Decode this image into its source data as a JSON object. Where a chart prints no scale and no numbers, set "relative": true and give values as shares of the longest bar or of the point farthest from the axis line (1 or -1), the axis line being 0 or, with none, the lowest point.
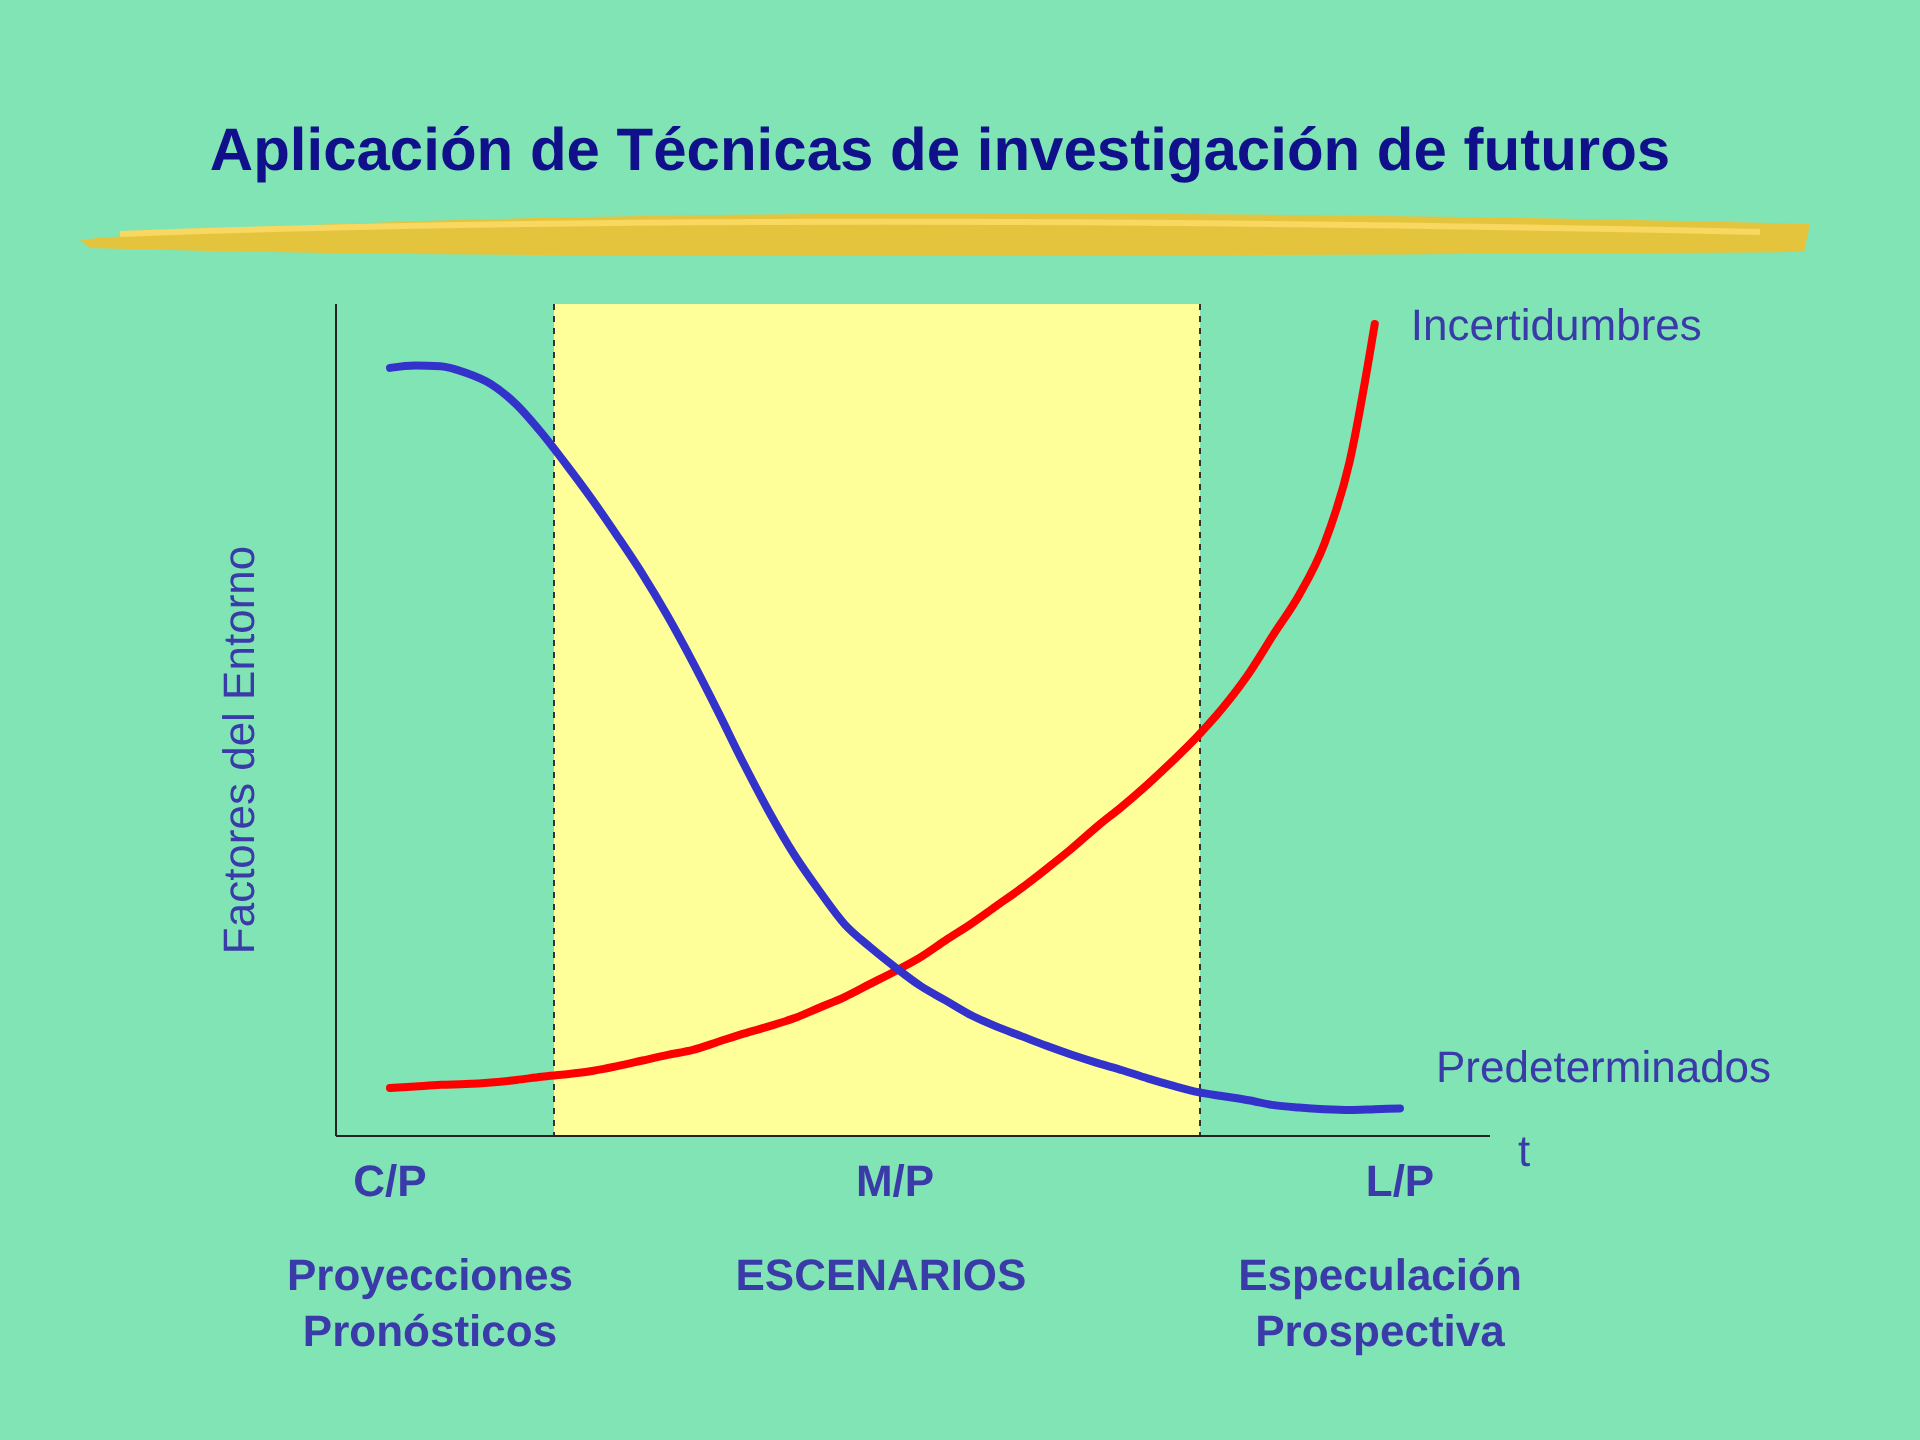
{
  "chart_data": {
    "type": "line",
    "relative": true,
    "title": "Aplicación de Técnicas de investigación de futuros",
    "xlabel": "t",
    "ylabel": "Factores del Entorno",
    "categories": [
      "C/P",
      null,
      null,
      null,
      null,
      null,
      null,
      null,
      null,
      null,
      null,
      null,
      null,
      null,
      null,
      null,
      null,
      null,
      null,
      null,
      "M/P",
      null,
      null,
      null,
      null,
      null,
      null,
      null,
      null,
      null,
      null,
      null,
      null,
      null,
      null,
      null,
      null,
      null,
      null,
      null,
      "L/P"
    ],
    "annotations": [
      "Proyecciones\nPronósticos",
      "ESCENARIOS",
      "Especulación\nProspectiva"
    ],
    "series": [
      {
        "name": "Incertidumbres",
        "color": "#ff0000",
        "values": [
          0.059,
          0.061,
          0.063,
          0.064,
          0.066,
          0.069,
          0.073,
          0.076,
          0.08,
          0.086,
          0.093,
          0.1,
          0.106,
          0.116,
          0.126,
          0.135,
          0.145,
          0.158,
          0.171,
          0.187,
          0.203,
          0.22,
          0.241,
          0.261,
          0.283,
          0.305,
          0.329,
          0.354,
          0.381,
          0.406,
          0.433,
          0.462,
          0.493,
          0.528,
          0.569,
          0.618,
          0.666,
          0.729,
          0.83,
          1,
          null
        ]
      },
      {
        "name": "Predeterminados",
        "color": "#3333cc",
        "values": [
          0.946,
          0.949,
          0.948,
          0.94,
          0.926,
          0.901,
          0.866,
          0.826,
          0.784,
          0.739,
          0.692,
          0.64,
          0.583,
          0.522,
          0.459,
          0.4,
          0.347,
          0.302,
          0.261,
          0.233,
          0.208,
          0.185,
          0.167,
          0.149,
          0.135,
          0.123,
          0.111,
          0.1,
          0.09,
          0.081,
          0.071,
          0.062,
          0.054,
          0.049,
          0.044,
          0.038,
          0.035,
          0.033,
          0.032,
          0.033,
          0.034
        ]
      }
    ]
  }
}
